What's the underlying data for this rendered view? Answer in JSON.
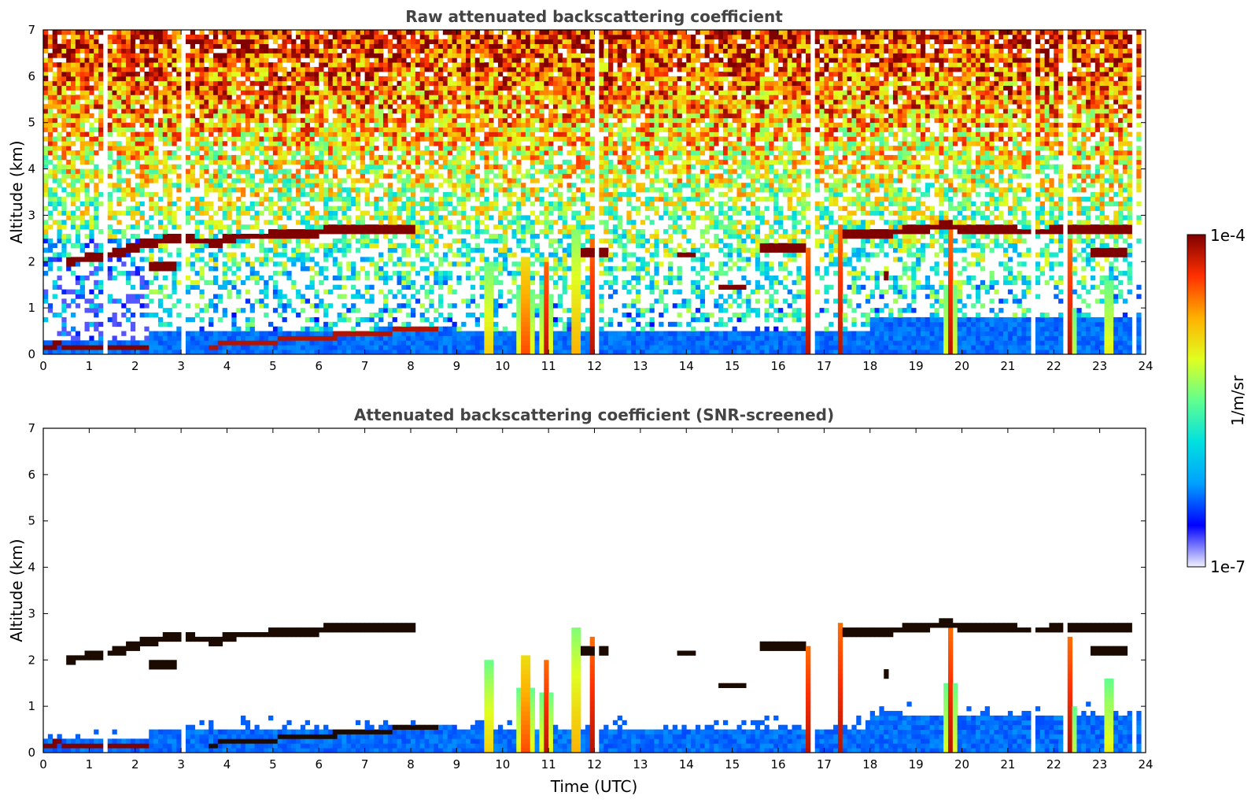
{
  "chart_data": [
    {
      "type": "heatmap",
      "title": "Raw attenuated backscattering coefficient",
      "xlabel": "",
      "ylabel": "Altitude (km)",
      "xlim": [
        0,
        24
      ],
      "ylim": [
        0,
        7
      ],
      "xticks": [
        0,
        1,
        2,
        3,
        4,
        5,
        6,
        7,
        8,
        9,
        10,
        11,
        12,
        13,
        14,
        15,
        16,
        17,
        18,
        19,
        20,
        21,
        22,
        23,
        24
      ],
      "yticks": [
        0,
        1,
        2,
        3,
        4,
        5,
        6,
        7
      ],
      "screened": false
    },
    {
      "type": "heatmap",
      "title": "Attenuated backscattering coefficient (SNR-screened)",
      "xlabel": "Time (UTC)",
      "ylabel": "Altitude (km)",
      "xlim": [
        0,
        24
      ],
      "ylim": [
        0,
        7
      ],
      "xticks": [
        0,
        1,
        2,
        3,
        4,
        5,
        6,
        7,
        8,
        9,
        10,
        11,
        12,
        13,
        14,
        15,
        16,
        17,
        18,
        19,
        20,
        21,
        22,
        23,
        24
      ],
      "yticks": [
        0,
        1,
        2,
        3,
        4,
        5,
        6,
        7
      ],
      "screened": true
    }
  ],
  "colorbar": {
    "label": "1/m/sr",
    "max_label": "1e-4",
    "min_label": "1e-7",
    "colormap": "jet",
    "colors": [
      "#f0f0ff",
      "#0000ff",
      "#00a0ff",
      "#00e0e0",
      "#60ff90",
      "#e0ff20",
      "#ffb000",
      "#ff3000",
      "#800000"
    ]
  },
  "features": {
    "cloud_layer": [
      [
        0.45,
        2.0
      ],
      [
        1.3,
        2.12
      ],
      [
        1.8,
        2.25
      ],
      [
        2.2,
        2.38
      ],
      [
        2.7,
        2.47
      ],
      [
        3.3,
        2.46
      ],
      [
        3.8,
        2.42
      ],
      [
        4.2,
        2.55
      ],
      [
        4.8,
        2.55
      ],
      [
        5.3,
        2.6
      ],
      [
        5.8,
        2.62
      ],
      [
        6.3,
        2.68
      ],
      [
        6.9,
        2.68
      ],
      [
        7.6,
        2.68
      ],
      [
        8.1,
        2.66
      ]
    ],
    "cloud_layer_late": [
      [
        17.4,
        2.6
      ],
      [
        18.4,
        2.62
      ],
      [
        19.0,
        2.7
      ],
      [
        19.6,
        2.78
      ],
      [
        20.1,
        2.72
      ],
      [
        20.6,
        2.71
      ],
      [
        21.2,
        2.66
      ],
      [
        21.8,
        2.64
      ],
      [
        22.4,
        2.72
      ],
      [
        23.0,
        2.7
      ],
      [
        23.8,
        2.72
      ]
    ],
    "cloud_segments": [
      [
        2.3,
        2.9,
        1.88
      ],
      [
        11.75,
        12.3,
        2.2
      ],
      [
        13.8,
        14.2,
        2.17
      ],
      [
        15.6,
        16.6,
        2.3
      ],
      [
        14.7,
        15.3,
        1.45
      ],
      [
        18.3,
        18.45,
        1.68
      ],
      [
        22.8,
        23.6,
        2.2
      ]
    ],
    "plumes": [
      [
        9.7,
        0.18,
        2.3
      ],
      [
        10.5,
        0.45,
        2.1
      ],
      [
        10.95,
        0.3,
        2.0
      ],
      [
        11.6,
        0.22,
        2.7
      ],
      [
        11.95,
        0.15,
        2.5
      ],
      [
        16.65,
        0.12,
        2.3
      ],
      [
        17.35,
        0.16,
        2.8
      ],
      [
        19.75,
        0.28,
        2.7
      ],
      [
        22.35,
        0.25,
        2.5
      ],
      [
        23.2,
        0.15,
        2.4
      ]
    ],
    "gaps": [
      1.35,
      1.6,
      2.1,
      3.05,
      3.3,
      4.1,
      4.3,
      5.3,
      5.6,
      6.1,
      7.2,
      7.6,
      8.8,
      9.1,
      9.2,
      9.5,
      10.6,
      10.9,
      11.3,
      12.05,
      12.3,
      16.6,
      16.75,
      17.2,
      21.4,
      21.55,
      22.25,
      23.75
    ]
  }
}
